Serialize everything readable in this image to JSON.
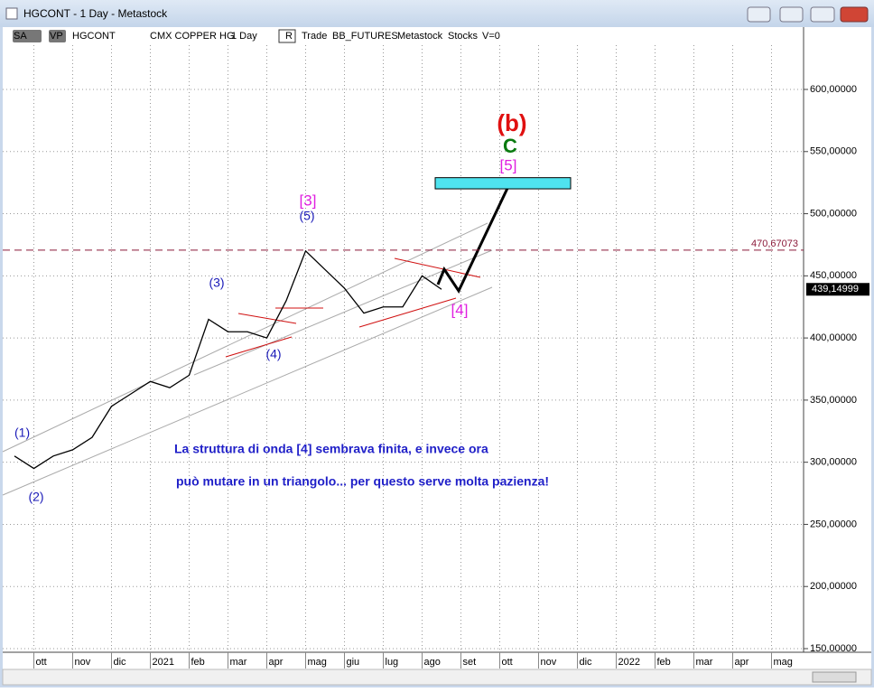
{
  "window": {
    "title": "HGCONT - 1 Day - Metastock"
  },
  "toolbar": {
    "items": [
      "SA",
      "VP",
      "HGCONT",
      "CMX COPPER HG",
      "1 Day",
      "R",
      "Trade",
      "BB_FUTURES",
      "Metastock",
      "Stocks",
      "V=0"
    ]
  },
  "chart_data": {
    "type": "line",
    "color": "#000000",
    "categories": [
      null,
      "ott",
      null,
      "nov",
      null,
      "dic",
      null,
      "2021",
      null,
      "feb",
      null,
      "mar",
      null,
      "apr",
      null,
      "mag",
      null,
      "giu",
      null,
      "lug",
      null,
      "ago",
      null,
      "set",
      null,
      "ott",
      null,
      "nov",
      null,
      "dic",
      null,
      "2022",
      null,
      "feb",
      null,
      "mar",
      null,
      "apr",
      null,
      "mag",
      null
    ],
    "values": [
      305,
      295,
      305,
      310,
      320,
      345,
      355,
      365,
      360,
      370,
      415,
      405,
      405,
      400,
      430,
      470,
      455,
      440,
      420,
      425,
      425,
      450,
      439.14999,
      null,
      null,
      null,
      null,
      null,
      null,
      null,
      null,
      null,
      null,
      null,
      null,
      null,
      null,
      null,
      null,
      null,
      null
    ],
    "ylim": [
      145,
      640
    ],
    "yticks": [
      {
        "value": 150,
        "label": "150,00000"
      },
      {
        "value": 200,
        "label": "200,00000"
      },
      {
        "value": 250,
        "label": "250,00000"
      },
      {
        "value": 300,
        "label": "300,00000"
      },
      {
        "value": 350,
        "label": "350,00000"
      },
      {
        "value": 400,
        "label": "400,00000"
      },
      {
        "value": 450,
        "label": "450,00000"
      },
      {
        "value": 500,
        "label": "500,00000"
      },
      {
        "value": 550,
        "label": "550,00000"
      },
      {
        "value": 600,
        "label": "600,00000"
      }
    ],
    "grid": true,
    "last_price": {
      "value": 439.14999,
      "label": "439,14999"
    },
    "hline": {
      "value": 470.67073,
      "label": "470,67073"
    },
    "target_zone": [
      520,
      529
    ],
    "wave_labels": [
      "(1)",
      "(2)",
      "(3)",
      "(4)",
      "(5)",
      "[3]",
      "[4]",
      "[5]",
      "C",
      "(b)"
    ],
    "notes": [
      "La struttura di onda [4] sembrava finita, e invece ora",
      "può mutare in un triangolo... per questo serve molta pazienza!"
    ]
  }
}
